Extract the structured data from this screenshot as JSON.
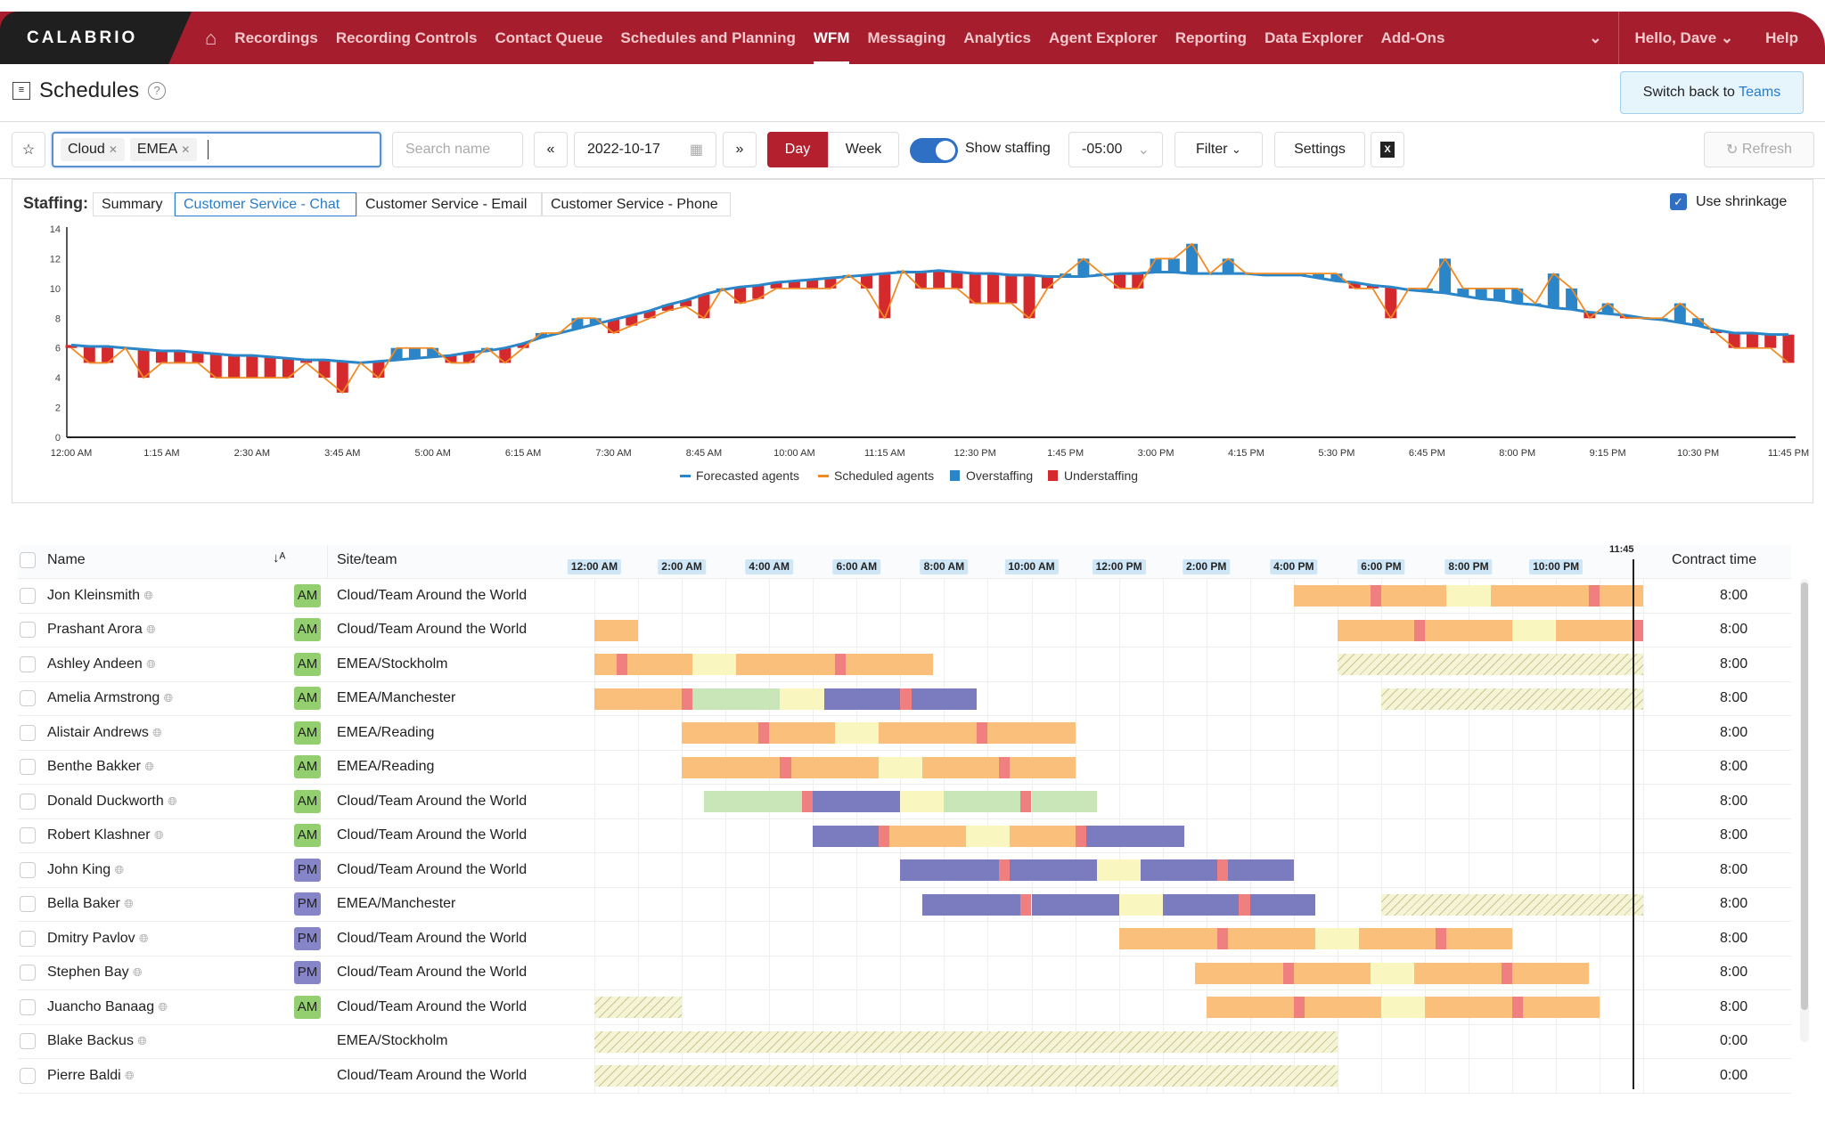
{
  "nav": {
    "logo": "CALABRIO",
    "items": [
      "Recordings",
      "Recording Controls",
      "Contact Queue",
      "Schedules and Planning",
      "WFM",
      "Messaging",
      "Analytics",
      "Agent Explorer",
      "Reporting",
      "Data Explorer",
      "Add-Ons"
    ],
    "active": "WFM",
    "greeting": "Hello, Dave",
    "help": "Help"
  },
  "page": {
    "title": "Schedules",
    "switch_prefix": "Switch back to ",
    "switch_link": "Teams"
  },
  "toolbar": {
    "chips": [
      "Cloud",
      "EMEA"
    ],
    "search_placeholder": "Search name",
    "date": "2022-10-17",
    "day": "Day",
    "week": "Week",
    "show_staffing": "Show staffing",
    "show_staffing_on": true,
    "timezone": "-05:00",
    "filter": "Filter",
    "settings": "Settings",
    "refresh": "Refresh"
  },
  "staffing": {
    "label": "Staffing:",
    "tabs": [
      "Summary",
      "Customer Service - Chat",
      "Customer Service - Email",
      "Customer Service - Phone"
    ],
    "selected": 1,
    "use_shrinkage": "Use shrinkage",
    "use_shrinkage_checked": true
  },
  "chart_data": {
    "type": "bar+line",
    "interval_minutes": 15,
    "x_start": "12:00 AM",
    "x_end": "11:45 PM",
    "xticks": [
      "12:00 AM",
      "1:15 AM",
      "2:30 AM",
      "3:45 AM",
      "5:00 AM",
      "6:15 AM",
      "7:30 AM",
      "8:45 AM",
      "10:00 AM",
      "11:15 AM",
      "12:30 PM",
      "1:45 PM",
      "3:00 PM",
      "4:15 PM",
      "5:30 PM",
      "6:45 PM",
      "8:00 PM",
      "9:15 PM",
      "10:30 PM",
      "11:45 PM"
    ],
    "yticks": [
      0,
      2,
      4,
      6,
      8,
      10,
      12,
      14
    ],
    "ylim": [
      0,
      14
    ],
    "grid": false,
    "legend_placement": "bottom",
    "legend": [
      "Forecasted agents",
      "Scheduled agents",
      "Overstaffing",
      "Understaffing"
    ],
    "colors": {
      "forecast": "#2a86c8",
      "scheduled": "#f08a24",
      "over": "#2a86c8",
      "under": "#d42a2e"
    },
    "forecast": [
      6.2,
      6.1,
      6.1,
      6.0,
      5.9,
      5.8,
      5.8,
      5.7,
      5.6,
      5.5,
      5.5,
      5.4,
      5.3,
      5.2,
      5.2,
      5.1,
      5.0,
      5.1,
      5.2,
      5.3,
      5.4,
      5.5,
      5.7,
      5.8,
      6.0,
      6.3,
      6.7,
      7.0,
      7.3,
      7.6,
      7.9,
      8.2,
      8.5,
      8.9,
      9.2,
      9.6,
      9.9,
      10.1,
      10.2,
      10.4,
      10.5,
      10.6,
      10.7,
      10.8,
      10.9,
      11.0,
      11.1,
      11.1,
      11.2,
      11.1,
      11.0,
      11.0,
      10.9,
      10.9,
      10.8,
      10.8,
      10.8,
      10.9,
      11.0,
      11.0,
      11.1,
      11.1,
      11.0,
      11.0,
      11.0,
      11.0,
      10.9,
      10.9,
      10.9,
      10.7,
      10.5,
      10.4,
      10.2,
      10.1,
      9.9,
      9.8,
      9.7,
      9.5,
      9.3,
      9.2,
      9.0,
      8.9,
      8.7,
      8.6,
      8.4,
      8.3,
      8.2,
      8.0,
      7.9,
      7.7,
      7.5,
      7.2,
      7.0,
      7.0,
      6.9,
      6.9
    ],
    "scheduled": [
      6,
      5,
      5,
      6,
      4,
      5,
      5,
      5,
      4,
      4,
      4,
      4,
      4,
      5,
      4,
      3,
      5,
      4,
      6,
      6,
      6,
      5,
      5,
      6,
      5,
      6,
      7,
      7,
      8,
      8,
      7,
      7.5,
      8,
      8.5,
      8.8,
      8,
      10,
      9,
      9.3,
      10,
      10,
      10,
      10,
      10.9,
      10,
      8,
      11.2,
      10,
      10,
      10,
      9,
      9,
      9,
      8,
      10,
      11,
      12,
      11,
      10,
      10,
      12,
      12,
      13,
      11,
      12,
      11,
      11,
      11,
      11,
      11,
      11,
      10,
      10,
      8,
      10,
      10,
      12,
      10,
      10,
      10,
      10,
      9,
      11,
      10,
      8,
      9,
      8,
      8,
      8,
      9,
      8,
      7,
      6,
      6,
      6,
      5
    ]
  },
  "table": {
    "headers": {
      "name": "Name",
      "site": "Site/team",
      "contract": "Contract time"
    },
    "time_labels": [
      "12:00 AM",
      "2:00 AM",
      "4:00 AM",
      "6:00 AM",
      "8:00 AM",
      "10:00 AM",
      "12:00 PM",
      "2:00 PM",
      "4:00 PM",
      "6:00 PM",
      "8:00 PM",
      "10:00 PM"
    ],
    "current_time": "11:45",
    "current_time_hours": 23.75,
    "activity_colors": {
      "phone": "#fbbf7c",
      "break": "#f07f7f",
      "lunch": "#faf6c0",
      "email": "#c8e6b8",
      "chat": "#7b7bbf",
      "absence": "hatch"
    },
    "badge_colors": {
      "AM": "#93cf6e",
      "PM": "#8585c8"
    },
    "rows": [
      {
        "name": "Jon Kleinsmith",
        "badge": "AM",
        "site": "Cloud/Team Around the World",
        "contract": "8:00",
        "segs": [
          [
            16,
            17.75,
            "phone"
          ],
          [
            17.75,
            18,
            "break"
          ],
          [
            18,
            19.5,
            "phone"
          ],
          [
            19.5,
            20.5,
            "lunch"
          ],
          [
            20.5,
            22.75,
            "phone"
          ],
          [
            22.75,
            23,
            "break"
          ],
          [
            23,
            24,
            "phone"
          ]
        ]
      },
      {
        "name": "Prashant Arora",
        "badge": "AM",
        "site": "Cloud/Team Around the World",
        "contract": "8:00",
        "segs": [
          [
            0,
            1,
            "phone"
          ],
          [
            17,
            18.75,
            "phone"
          ],
          [
            18.75,
            19,
            "break"
          ],
          [
            19,
            21,
            "phone"
          ],
          [
            21,
            22,
            "lunch"
          ],
          [
            22,
            23.75,
            "phone"
          ],
          [
            23.75,
            24,
            "break"
          ]
        ]
      },
      {
        "name": "Ashley Andeen",
        "badge": "AM",
        "site": "EMEA/Stockholm",
        "contract": "8:00",
        "segs": [
          [
            0,
            0.5,
            "phone"
          ],
          [
            0.5,
            0.75,
            "break"
          ],
          [
            0.75,
            2.25,
            "phone"
          ],
          [
            2.25,
            3.25,
            "lunch"
          ],
          [
            3.25,
            5.5,
            "phone"
          ],
          [
            5.5,
            5.75,
            "break"
          ],
          [
            5.75,
            7.75,
            "phone"
          ],
          [
            17,
            24,
            "absence"
          ]
        ]
      },
      {
        "name": "Amelia Armstrong",
        "badge": "AM",
        "site": "EMEA/Manchester",
        "contract": "8:00",
        "segs": [
          [
            0,
            2,
            "phone"
          ],
          [
            2,
            2.25,
            "break"
          ],
          [
            2.25,
            4.25,
            "email"
          ],
          [
            4.25,
            5.25,
            "lunch"
          ],
          [
            5.25,
            7,
            "chat"
          ],
          [
            7,
            7.25,
            "break"
          ],
          [
            7.25,
            8.75,
            "chat"
          ],
          [
            18,
            24,
            "absence"
          ]
        ]
      },
      {
        "name": "Alistair Andrews",
        "badge": "AM",
        "site": "EMEA/Reading",
        "contract": "8:00",
        "segs": [
          [
            2,
            3.75,
            "phone"
          ],
          [
            3.75,
            4,
            "break"
          ],
          [
            4,
            5.5,
            "phone"
          ],
          [
            5.5,
            6.5,
            "lunch"
          ],
          [
            6.5,
            8.75,
            "phone"
          ],
          [
            8.75,
            9,
            "break"
          ],
          [
            9,
            11,
            "phone"
          ]
        ]
      },
      {
        "name": "Benthe Bakker",
        "badge": "AM",
        "site": "EMEA/Reading",
        "contract": "8:00",
        "segs": [
          [
            2,
            4.25,
            "phone"
          ],
          [
            4.25,
            4.5,
            "break"
          ],
          [
            4.5,
            6.5,
            "phone"
          ],
          [
            6.5,
            7.5,
            "lunch"
          ],
          [
            7.5,
            9.25,
            "phone"
          ],
          [
            9.25,
            9.5,
            "break"
          ],
          [
            9.5,
            11,
            "phone"
          ]
        ]
      },
      {
        "name": "Donald Duckworth",
        "badge": "AM",
        "site": "Cloud/Team Around the World",
        "contract": "8:00",
        "segs": [
          [
            2.5,
            4.75,
            "email"
          ],
          [
            4.75,
            5,
            "break"
          ],
          [
            5,
            7,
            "chat"
          ],
          [
            7,
            8,
            "lunch"
          ],
          [
            8,
            9.75,
            "email"
          ],
          [
            9.75,
            10,
            "break"
          ],
          [
            10,
            11.5,
            "email"
          ]
        ]
      },
      {
        "name": "Robert Klashner",
        "badge": "AM",
        "site": "Cloud/Team Around the World",
        "contract": "8:00",
        "segs": [
          [
            5,
            6.5,
            "chat"
          ],
          [
            6.5,
            6.75,
            "break"
          ],
          [
            6.75,
            8.5,
            "phone"
          ],
          [
            8.5,
            9.5,
            "lunch"
          ],
          [
            9.5,
            11,
            "phone"
          ],
          [
            11,
            11.25,
            "break"
          ],
          [
            11.25,
            13.5,
            "chat"
          ]
        ]
      },
      {
        "name": "John King",
        "badge": "PM",
        "site": "Cloud/Team Around the World",
        "contract": "8:00",
        "segs": [
          [
            7,
            9.25,
            "chat"
          ],
          [
            9.25,
            9.5,
            "break"
          ],
          [
            9.5,
            11.5,
            "chat"
          ],
          [
            11.5,
            12.5,
            "lunch"
          ],
          [
            12.5,
            14.25,
            "chat"
          ],
          [
            14.25,
            14.5,
            "break"
          ],
          [
            14.5,
            16,
            "chat"
          ]
        ]
      },
      {
        "name": "Bella Baker",
        "badge": "PM",
        "site": "EMEA/Manchester",
        "contract": "8:00",
        "segs": [
          [
            7.5,
            9.75,
            "chat"
          ],
          [
            9.75,
            10,
            "break"
          ],
          [
            10,
            12,
            "chat"
          ],
          [
            12,
            13,
            "lunch"
          ],
          [
            13,
            14.75,
            "chat"
          ],
          [
            14.75,
            15,
            "break"
          ],
          [
            15,
            16.5,
            "chat"
          ],
          [
            18,
            24,
            "absence"
          ]
        ]
      },
      {
        "name": "Dmitry Pavlov",
        "badge": "PM",
        "site": "Cloud/Team Around the World",
        "contract": "8:00",
        "segs": [
          [
            12,
            14.25,
            "phone"
          ],
          [
            14.25,
            14.5,
            "break"
          ],
          [
            14.5,
            16.5,
            "phone"
          ],
          [
            16.5,
            17.5,
            "lunch"
          ],
          [
            17.5,
            19.25,
            "phone"
          ],
          [
            19.25,
            19.5,
            "break"
          ],
          [
            19.5,
            21,
            "phone"
          ]
        ]
      },
      {
        "name": "Stephen Bay",
        "badge": "PM",
        "site": "Cloud/Team Around the World",
        "contract": "8:00",
        "segs": [
          [
            13.75,
            15.75,
            "phone"
          ],
          [
            15.75,
            16,
            "break"
          ],
          [
            16,
            17.75,
            "phone"
          ],
          [
            17.75,
            18.75,
            "lunch"
          ],
          [
            18.75,
            20.75,
            "phone"
          ],
          [
            20.75,
            21,
            "break"
          ],
          [
            21,
            22.75,
            "phone"
          ]
        ]
      },
      {
        "name": "Juancho Banaag",
        "badge": "AM",
        "site": "Cloud/Team Around the World",
        "contract": "8:00",
        "segs": [
          [
            0,
            2,
            "absence"
          ],
          [
            14,
            16,
            "phone"
          ],
          [
            16,
            16.25,
            "break"
          ],
          [
            16.25,
            18,
            "phone"
          ],
          [
            18,
            19,
            "lunch"
          ],
          [
            19,
            21,
            "phone"
          ],
          [
            21,
            21.25,
            "break"
          ],
          [
            21.25,
            23,
            "phone"
          ]
        ]
      },
      {
        "name": "Blake Backus",
        "badge": "",
        "site": "EMEA/Stockholm",
        "contract": "0:00",
        "segs": [
          [
            0,
            17,
            "absence"
          ]
        ]
      },
      {
        "name": "Pierre Baldi",
        "badge": "",
        "site": "Cloud/Team Around the World",
        "contract": "0:00",
        "segs": [
          [
            0,
            17,
            "absence"
          ]
        ]
      }
    ]
  }
}
